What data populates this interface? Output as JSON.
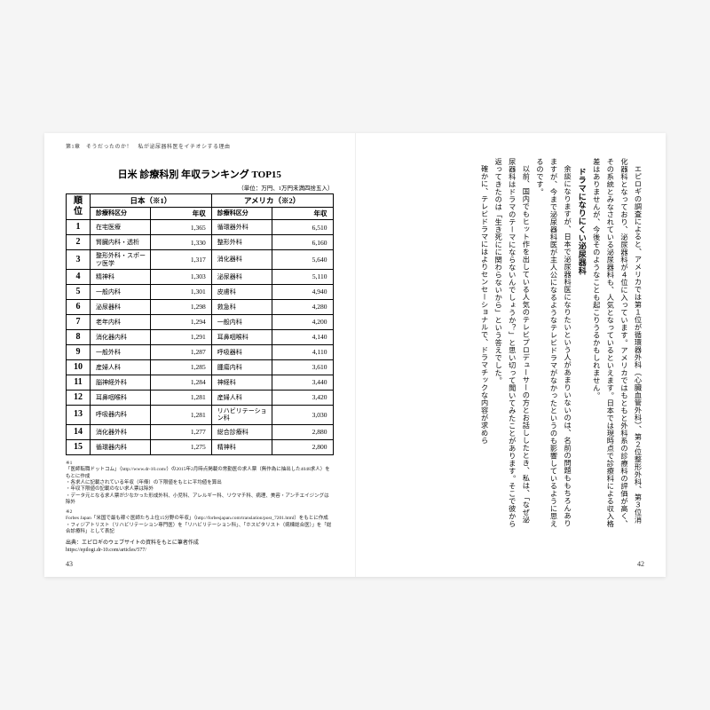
{
  "running_head": "第1章　そうだったのか！　私が泌尿器科医をイチオシする理由",
  "page_left_num": "43",
  "page_right_num": "42",
  "table": {
    "title": "日米 診療科別 年収ランキング TOP15",
    "unit": "（単位：万円、1万円未満四捨五入）",
    "group_japan": "日本（※1）",
    "group_us": "アメリカ（※2）",
    "col_rank": "順位",
    "col_dept": "診療科区分",
    "col_sal": "年収",
    "rows": [
      {
        "r": "1",
        "jd": "在宅医療",
        "js": "1,365",
        "ud": "循環器外科",
        "us": "6,510"
      },
      {
        "r": "2",
        "jd": "腎臓内科・透析",
        "js": "1,330",
        "ud": "整形外科",
        "us": "6,160"
      },
      {
        "r": "3",
        "jd": "整形外科・スポーツ医学",
        "js": "1,317",
        "ud": "消化器科",
        "us": "5,640"
      },
      {
        "r": "4",
        "jd": "精神科",
        "js": "1,303",
        "ud": "泌尿器科",
        "us": "5,110"
      },
      {
        "r": "5",
        "jd": "一般内科",
        "js": "1,301",
        "ud": "皮膚科",
        "us": "4,940"
      },
      {
        "r": "6",
        "jd": "泌尿器科",
        "js": "1,298",
        "ud": "救急科",
        "us": "4,280"
      },
      {
        "r": "7",
        "jd": "老年内科",
        "js": "1,294",
        "ud": "一般内科",
        "us": "4,200"
      },
      {
        "r": "8",
        "jd": "消化器内科",
        "js": "1,291",
        "ud": "耳鼻咽喉科",
        "us": "4,140"
      },
      {
        "r": "9",
        "jd": "一般外科",
        "js": "1,287",
        "ud": "呼吸器科",
        "us": "4,110"
      },
      {
        "r": "10",
        "jd": "産婦人科",
        "js": "1,285",
        "ud": "腫瘍内科",
        "us": "3,610"
      },
      {
        "r": "11",
        "jd": "脳神経外科",
        "js": "1,284",
        "ud": "神経科",
        "us": "3,440"
      },
      {
        "r": "12",
        "jd": "耳鼻咽喉科",
        "js": "1,281",
        "ud": "産婦人科",
        "us": "3,420"
      },
      {
        "r": "13",
        "jd": "呼吸器内科",
        "js": "1,281",
        "ud": "リハビリテーション科",
        "us": "3,030"
      },
      {
        "r": "14",
        "jd": "消化器外科",
        "js": "1,277",
        "ud": "総合診療科",
        "us": "2,880"
      },
      {
        "r": "15",
        "jd": "循環器内科",
        "js": "1,275",
        "ud": "精神科",
        "us": "2,800"
      }
    ],
    "footnote1_label": "※1",
    "footnote1": "「医師転職ドットコム」（http://www.dr-10.com/）の2015年2月時点掲載の常勤医の求人票（無作為に抽出した4048求人）をもとに作成\n・各求人に記載されている年収（年俸）の下限値をもとに平均値を算出\n・年収下限値の記載のない求人票は除外\n・データ元となる求人票が少なかった形成外科、小児科、アレルギー科、リウマチ科、病理、美容・アンチエイジングは除外",
    "footnote2_label": "※2",
    "footnote2": "Forbes Japan「米国で最も稼ぐ医師たち上位15分野の年収」（http://forbesjapan.com/translation/post_7201.html）をもとに作成\n・フィジアトリスト（リハビリテーション専門医）を「リハビリテーション科」、「ホスピタリスト（病棟総合医）」を「総合診療科」として表記",
    "source": "出典：エピロギのウェブサイトの資料をもとに筆者作成\nhttps://epilogi.dr-10.com/articles/577/"
  },
  "right_text": {
    "p1": "エピロギの調査によると、アメリカでは第１位が循環器外科（心臓血管外科）、第２位整形外科、第３位消化器科となっており、泌尿器科が４位に入っています。アメリカではもともと外科系の診療科の評価が高く、その系統とみなされている泌尿器科も、人気となっているといえます。日本では現時点で診療科による収入格差はありませんが、今後そのようなことも起こりうるかもしれません。",
    "heading": "ドラマになりにくい泌尿器科",
    "p2": "余談になりますが、日本で泌尿器科医になりたいという人があまりいないのは、名前の問題ももちろんありますが、今まで泌尿器科医が主人公になるようなテレビドラマがなかったというのも影響しているように思えるのです。",
    "p3": "以前、国内でもヒット作を出している人気のテレビプロデューサーの方とお話ししたとき、私は、「なぜ泌尿器科はドラマのテーマにならないんでしょうか？」と思い切って聞いてみたことがあります。そこで彼から返ってきたのは「生き死にに関わらないから」という答えでした。",
    "p4": "確かに、テレビドラマにはよりセンセーショナルで、ドラマチックな内容が求めら"
  }
}
